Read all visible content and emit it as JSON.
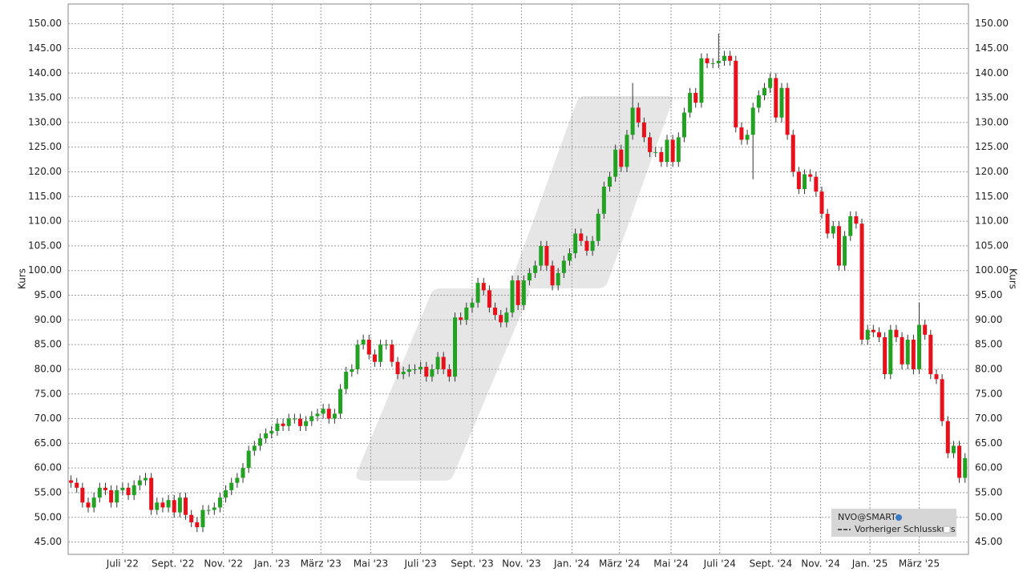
{
  "chart_data": {
    "type": "candlestick",
    "y_label": "Kurs",
    "legend": {
      "symbol": "NVO@SMART",
      "entry": "Vorheriger Schlusskurs"
    },
    "up_color": "#22a122",
    "down_color": "#e8101a",
    "grid": true,
    "xlim": [
      -0.5,
      156.6
    ],
    "xticks": [
      {
        "value": 9,
        "label": "Juli '22"
      },
      {
        "value": 17.8,
        "label": "Sept. '22"
      },
      {
        "value": 26.6,
        "label": "Nov. '22"
      },
      {
        "value": 35.1,
        "label": "Jan. '23"
      },
      {
        "value": 43.6,
        "label": "März '23"
      },
      {
        "value": 52.3,
        "label": "Mai '23"
      },
      {
        "value": 61,
        "label": "Juli '23"
      },
      {
        "value": 70,
        "label": "Sept. '23"
      },
      {
        "value": 78.6,
        "label": "Nov. '23"
      },
      {
        "value": 87.4,
        "label": "Jan. '24"
      },
      {
        "value": 95.7,
        "label": "März '24"
      },
      {
        "value": 104.7,
        "label": "Mai '24"
      },
      {
        "value": 113.2,
        "label": "Juli '24"
      },
      {
        "value": 122.1,
        "label": "Sept. '24"
      },
      {
        "value": 130.8,
        "label": "Nov. '24"
      },
      {
        "value": 139.4,
        "label": "Jan. '25"
      },
      {
        "value": 148,
        "label": "März '25"
      }
    ],
    "ylim": [
      42.5,
      154
    ],
    "yticks": [
      {
        "value": 45,
        "label": "45.00"
      },
      {
        "value": 50,
        "label": "50.00"
      },
      {
        "value": 55,
        "label": "55.00"
      },
      {
        "value": 60,
        "label": "60.00"
      },
      {
        "value": 65,
        "label": "65.00"
      },
      {
        "value": 70,
        "label": "70.00"
      },
      {
        "value": 75,
        "label": "75.00"
      },
      {
        "value": 80,
        "label": "80.00"
      },
      {
        "value": 85,
        "label": "85.00"
      },
      {
        "value": 90,
        "label": "90.00"
      },
      {
        "value": 95,
        "label": "95.00"
      },
      {
        "value": 100,
        "label": "100.00"
      },
      {
        "value": 105,
        "label": "105.00"
      },
      {
        "value": 110,
        "label": "110.00"
      },
      {
        "value": 115,
        "label": "115.00"
      },
      {
        "value": 120,
        "label": "120.00"
      },
      {
        "value": 125,
        "label": "125.00"
      },
      {
        "value": 130,
        "label": "130.00"
      },
      {
        "value": 135,
        "label": "135.00"
      },
      {
        "value": 140,
        "label": "140.00"
      },
      {
        "value": 145,
        "label": "145.00"
      },
      {
        "value": 150,
        "label": "150.00"
      }
    ],
    "open": [
      57.5,
      57,
      56,
      53,
      52,
      54,
      56,
      55.5,
      53,
      55.5,
      56,
      54.5,
      56.5,
      57.5,
      58,
      51.5,
      53,
      52,
      53.5,
      51,
      54,
      50.5,
      49,
      48,
      51.5,
      51.5,
      52,
      54,
      55.5,
      57,
      58,
      60,
      63.5,
      64.5,
      66,
      67,
      67.5,
      69,
      68.5,
      70,
      70,
      68.5,
      69.5,
      70.5,
      71,
      72,
      70,
      71,
      76,
      79.5,
      80,
      85,
      86,
      83,
      81.5,
      85,
      85,
      81.5,
      79,
      79.5,
      80,
      80,
      80.5,
      78.5,
      80,
      82.5,
      80,
      78.5,
      90.5,
      90,
      92.5,
      93.5,
      97.5,
      96,
      92.5,
      91,
      89.5,
      91.5,
      98,
      93,
      98,
      99.5,
      101,
      105,
      101,
      97,
      99.5,
      102,
      103.5,
      107.5,
      106,
      104,
      106,
      111.5,
      117,
      119,
      124.5,
      121,
      127.5,
      133,
      130,
      127,
      124,
      124,
      122,
      126.5,
      122,
      127,
      132,
      136,
      134,
      143,
      142,
      142,
      142.5,
      143.5,
      142.5,
      129,
      126.5,
      127.5,
      133,
      135.5,
      137,
      139,
      131,
      137,
      127.5,
      120,
      116.5,
      119.5,
      119,
      116,
      111.5,
      107.5,
      109,
      101,
      107,
      111,
      109.5,
      86,
      88,
      87.5,
      86.5,
      79,
      88,
      86.5,
      81,
      86,
      80,
      89,
      87,
      79,
      78,
      69.5,
      63,
      64.5,
      58
    ],
    "high": [
      58.5,
      58,
      57,
      54,
      55,
      57,
      57,
      56.5,
      56.5,
      57,
      57,
      57.5,
      58.5,
      59,
      59,
      54,
      54,
      54.5,
      54.5,
      55,
      55,
      51.5,
      50,
      52.5,
      52.5,
      53,
      55,
      56.5,
      58,
      59,
      61,
      64.5,
      65.5,
      67,
      68,
      68.5,
      70,
      70,
      71,
      71,
      71,
      70.5,
      71.5,
      72,
      73,
      73,
      72,
      77,
      80.5,
      81,
      86,
      87,
      87,
      84,
      86,
      86,
      86,
      82.5,
      80.5,
      81,
      81,
      81.5,
      81.5,
      81,
      83.5,
      83.5,
      81,
      91.5,
      91.5,
      93.5,
      94.5,
      98.5,
      98.5,
      97,
      93.5,
      92,
      92.5,
      99,
      99,
      99,
      100.5,
      102,
      106,
      106,
      102,
      100.5,
      103,
      104.5,
      108.5,
      108.5,
      107,
      107,
      112.5,
      118,
      120,
      125.5,
      125.5,
      128.5,
      138,
      134,
      131,
      128,
      125,
      125,
      127.5,
      127.5,
      128,
      133,
      137,
      137,
      144,
      144,
      143,
      148,
      144.5,
      144.5,
      143.5,
      130,
      128.5,
      134,
      136.5,
      138,
      140,
      140,
      138,
      138,
      128.5,
      121,
      120.5,
      120.5,
      120,
      117,
      112.5,
      110,
      110,
      108,
      112,
      112,
      110.5,
      89,
      89,
      88.5,
      87.5,
      89,
      89,
      87.5,
      87,
      87,
      93.5,
      90,
      88,
      80,
      79,
      70.5,
      65.5,
      65.5,
      63
    ],
    "low": [
      56,
      55,
      52,
      51,
      51,
      53,
      54.5,
      52,
      52,
      54.5,
      53.5,
      53.5,
      55.5,
      56.5,
      50.5,
      50.5,
      51,
      51,
      50,
      50,
      49.5,
      48,
      47,
      47,
      50.5,
      50.5,
      51,
      53,
      54.5,
      56,
      57,
      59,
      62.5,
      63.5,
      65,
      66,
      66.5,
      67.5,
      67.5,
      69,
      67.5,
      67.5,
      68.5,
      69.5,
      70,
      69,
      69,
      70,
      75,
      78.5,
      79,
      84,
      82,
      80.5,
      80.5,
      84,
      80.5,
      78,
      78,
      78.5,
      79,
      79,
      77.5,
      77.5,
      79,
      79,
      77.5,
      77.5,
      89,
      89,
      91.5,
      92.5,
      95,
      91.5,
      90,
      88.5,
      88.5,
      90.5,
      92,
      92,
      97,
      98.5,
      100,
      100,
      96,
      96,
      98.5,
      101,
      102.5,
      105,
      103,
      103,
      105,
      110.5,
      116,
      118,
      120,
      120,
      126.5,
      129,
      126,
      123,
      123,
      121,
      121,
      121,
      121,
      126,
      131,
      133,
      133,
      141,
      141,
      141,
      141.5,
      141.5,
      128,
      125.5,
      125.5,
      118.5,
      132,
      134.5,
      136,
      130,
      130,
      126.5,
      119,
      115.5,
      115.5,
      118,
      115,
      110.5,
      106.5,
      106.5,
      100,
      100,
      106,
      108.5,
      85,
      85,
      86.5,
      85.5,
      78,
      78,
      85.5,
      80,
      80,
      79,
      79,
      86,
      78,
      77,
      68.5,
      62,
      62,
      57,
      57
    ],
    "close": [
      57,
      56,
      53,
      52,
      54,
      56,
      55.5,
      53,
      55.5,
      56,
      54.5,
      56.5,
      57.5,
      58,
      51.5,
      53,
      52,
      53.5,
      51,
      54,
      50.5,
      49,
      48,
      51.5,
      51.5,
      52,
      54,
      55.5,
      57,
      58,
      60,
      63.5,
      64.5,
      66,
      67,
      67.5,
      69,
      68.5,
      70,
      70,
      68.5,
      69.5,
      70.5,
      71,
      72,
      70,
      71,
      76,
      79.5,
      80,
      85,
      86,
      83,
      81.5,
      85,
      85,
      81.5,
      79,
      79.5,
      80,
      80,
      80.5,
      78.5,
      80,
      82.5,
      80,
      78.5,
      90.5,
      90,
      92.5,
      93.5,
      97.5,
      96,
      92.5,
      91,
      89.5,
      91.5,
      98,
      93,
      98,
      99.5,
      101,
      105,
      101,
      97,
      99.5,
      102,
      103.5,
      107.5,
      106,
      104,
      106,
      111.5,
      117,
      119,
      124.5,
      121,
      127.5,
      133,
      130,
      127,
      124,
      124,
      122,
      126.5,
      122,
      127,
      132,
      136,
      134,
      143,
      142,
      142,
      142.5,
      143.5,
      142.5,
      129,
      126.5,
      127.5,
      133,
      135.5,
      137,
      139,
      131,
      137,
      127.5,
      120,
      116.5,
      119.5,
      119,
      116,
      111.5,
      107.5,
      109,
      101,
      107,
      111,
      109.5,
      86,
      88,
      87.5,
      86.5,
      79,
      88,
      86.5,
      81,
      86,
      80,
      89,
      87,
      79,
      78,
      69.5,
      63,
      64.5,
      58,
      62
    ]
  }
}
